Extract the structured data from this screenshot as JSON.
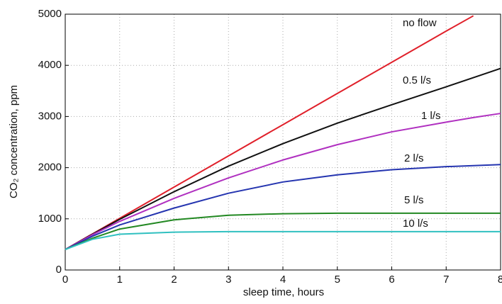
{
  "chart_data": {
    "type": "line",
    "xlabel": "sleep time, hours",
    "ylabel": "CO₂ concentration, ppm",
    "x": [
      0,
      0.5,
      1,
      2,
      3,
      4,
      5,
      6,
      7,
      7.5,
      8
    ],
    "series": [
      {
        "name": "no flow",
        "color": "#e0202a",
        "values": [
          400,
          705,
          1010,
          1620,
          2230,
          2840,
          3450,
          4060,
          4670,
          4968,
          null
        ]
      },
      {
        "name": "0.5 l/s",
        "color": "#111111",
        "values": [
          400,
          700,
          990,
          1530,
          2030,
          2470,
          2870,
          3230,
          3580,
          3760,
          3940
        ]
      },
      {
        "name": "1 l/s",
        "color": "#b030c0",
        "values": [
          400,
          690,
          950,
          1400,
          1800,
          2150,
          2450,
          2700,
          2890,
          2980,
          3060
        ]
      },
      {
        "name": "2 l/s",
        "color": "#2535b0",
        "values": [
          400,
          660,
          880,
          1210,
          1500,
          1720,
          1860,
          1960,
          2020,
          2040,
          2060
        ]
      },
      {
        "name": "5 l/s",
        "color": "#228822",
        "values": [
          400,
          620,
          800,
          980,
          1070,
          1100,
          1110,
          1110,
          1110,
          1110,
          1110
        ]
      },
      {
        "name": "10 l/s",
        "color": "#30c0c0",
        "values": [
          400,
          600,
          700,
          740,
          750,
          750,
          750,
          750,
          750,
          750,
          750
        ]
      }
    ],
    "xlim": [
      0,
      8
    ],
    "xticks": [
      0,
      1,
      2,
      3,
      4,
      5,
      6,
      7,
      8
    ],
    "ylim": [
      0,
      5000
    ],
    "yticks": [
      0,
      1000,
      2000,
      3000,
      4000,
      5000
    ],
    "grid": true
  }
}
